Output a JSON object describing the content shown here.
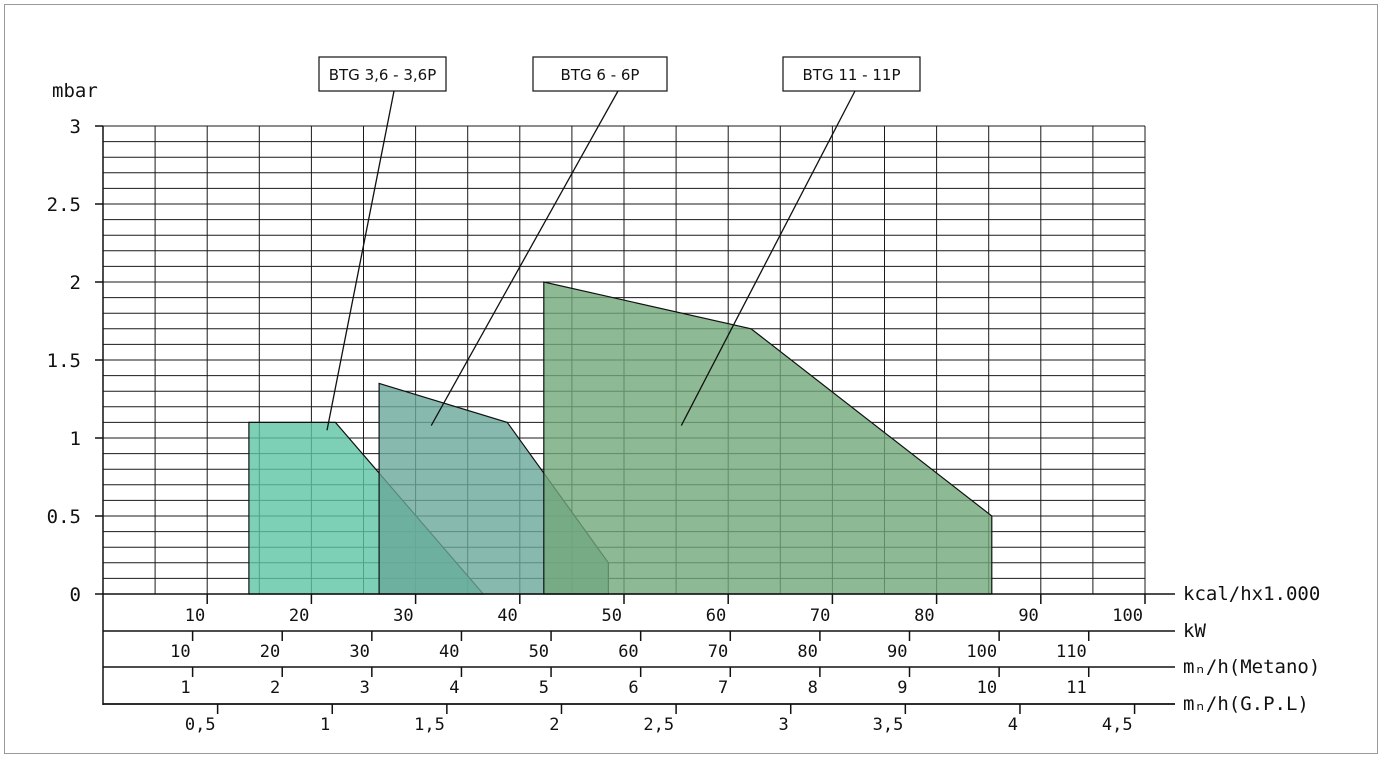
{
  "chart_data": {
    "type": "area",
    "ylabel": "mbar",
    "ylim": [
      0,
      3
    ],
    "y_ticks": [
      0,
      0.5,
      1,
      1.5,
      2,
      2.5,
      3
    ],
    "y_tick_labels": [
      "0",
      "0.5",
      "1",
      "1.5",
      "2",
      "2.5",
      "3"
    ],
    "grid": true,
    "x_axes": [
      {
        "label": "kcal/hx1.000",
        "ticks": [
          10,
          20,
          30,
          40,
          50,
          60,
          70,
          80,
          90,
          100
        ],
        "tick_labels": [
          "10",
          "20",
          "30",
          "40",
          "50",
          "60",
          "70",
          "80",
          "90",
          "100"
        ],
        "scale_to_primary": 1
      },
      {
        "label": "kW",
        "ticks": [
          10,
          20,
          30,
          40,
          50,
          60,
          70,
          80,
          90,
          100,
          110
        ],
        "tick_labels": [
          "10",
          "20",
          "30",
          "40",
          "50",
          "60",
          "70",
          "80",
          "90",
          "100",
          "110"
        ],
        "scale_to_primary": 0.86
      },
      {
        "label": "mₙ/h(Metano)",
        "ticks": [
          1,
          2,
          3,
          4,
          5,
          6,
          7,
          8,
          9,
          10,
          11
        ],
        "tick_labels": [
          "1",
          "2",
          "3",
          "4",
          "5",
          "6",
          "7",
          "8",
          "9",
          "10",
          "11"
        ],
        "scale_to_primary": 8.6
      },
      {
        "label": "mₙ/h(G.P.L)",
        "ticks": [
          0.5,
          1,
          1.5,
          2,
          2.5,
          3,
          3.5,
          4,
          4.5
        ],
        "tick_labels": [
          "0,5",
          "1",
          "1,5",
          "2",
          "2,5",
          "3",
          "3,5",
          "4",
          "4,5"
        ],
        "scale_to_primary": 22
      }
    ],
    "xlim": [
      0,
      100
    ],
    "series": [
      {
        "name": "BTG 3,6 - 3,6P",
        "color": "#5cc4a4",
        "points": [
          [
            14,
            0
          ],
          [
            14,
            1.1
          ],
          [
            22.3,
            1.1
          ],
          [
            36.5,
            0
          ]
        ]
      },
      {
        "name": "BTG 6 - 6P",
        "color": "#6aa79b",
        "points": [
          [
            26.5,
            0
          ],
          [
            26.5,
            1.35
          ],
          [
            38.8,
            1.1
          ],
          [
            48.5,
            0.2
          ],
          [
            48.5,
            0
          ]
        ]
      },
      {
        "name": "BTG 11 - 11P",
        "color": "#72a77a",
        "points": [
          [
            42.3,
            0
          ],
          [
            42.3,
            2.0
          ],
          [
            62.2,
            1.7
          ],
          [
            85.3,
            0.5
          ],
          [
            85.3,
            0
          ]
        ]
      }
    ],
    "annotations": [
      {
        "text": "BTG 3,6 - 3,6P",
        "target": [
          21.5,
          1.05
        ]
      },
      {
        "text": "BTG 6 - 6P",
        "target": [
          31.5,
          1.08
        ]
      },
      {
        "text": "BTG 11 - 11P",
        "target": [
          55.5,
          1.08
        ]
      }
    ]
  }
}
